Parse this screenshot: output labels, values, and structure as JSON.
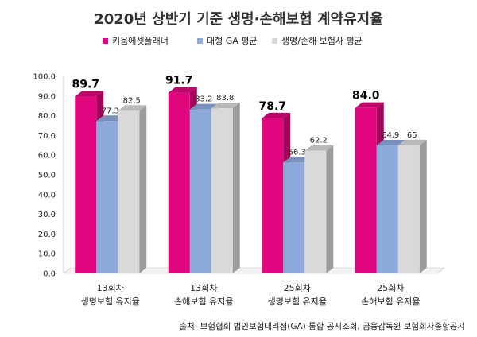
{
  "chart_data": {
    "type": "bar",
    "title": "2020년 상반기 기준 생명·손해보험 계약유지율",
    "categories": [
      [
        "13회차",
        "생명보험 유지율"
      ],
      [
        "13회차",
        "손해보험 유지율"
      ],
      [
        "25회차",
        "생명보험 유지율"
      ],
      [
        "25회차",
        "손해보험 유지율"
      ]
    ],
    "series": [
      {
        "name": "키움에셋플래너",
        "values": [
          89.7,
          91.7,
          78.7,
          84.0
        ],
        "labels": [
          "89.7",
          "91.7",
          "78.7",
          "84.0"
        ],
        "color": "#e0067d"
      },
      {
        "name": "대형 GA 평균",
        "values": [
          77.3,
          83.2,
          56.3,
          64.9
        ],
        "labels": [
          "77.3",
          "83.2",
          "56.3",
          "64.9"
        ],
        "color": "#8eaadb"
      },
      {
        "name": "생명/손해 보험사 평균",
        "values": [
          82.5,
          83.8,
          62.2,
          65
        ],
        "labels": [
          "82.5",
          "83.8",
          "62.2",
          "65"
        ],
        "color": "#d9d9d9"
      }
    ],
    "ylim": [
      0,
      100
    ],
    "yticks": [
      "0.0",
      "10.0",
      "20.0",
      "30.0",
      "40.0",
      "50.0",
      "60.0",
      "70.0",
      "80.0",
      "90.0",
      "100.0"
    ],
    "legend_position": "top",
    "grid": false,
    "source_note": "출처: 보험협회 법인보험대리점(GA) 통합 공시조회, 금융감독원 보험회사종합공시"
  }
}
